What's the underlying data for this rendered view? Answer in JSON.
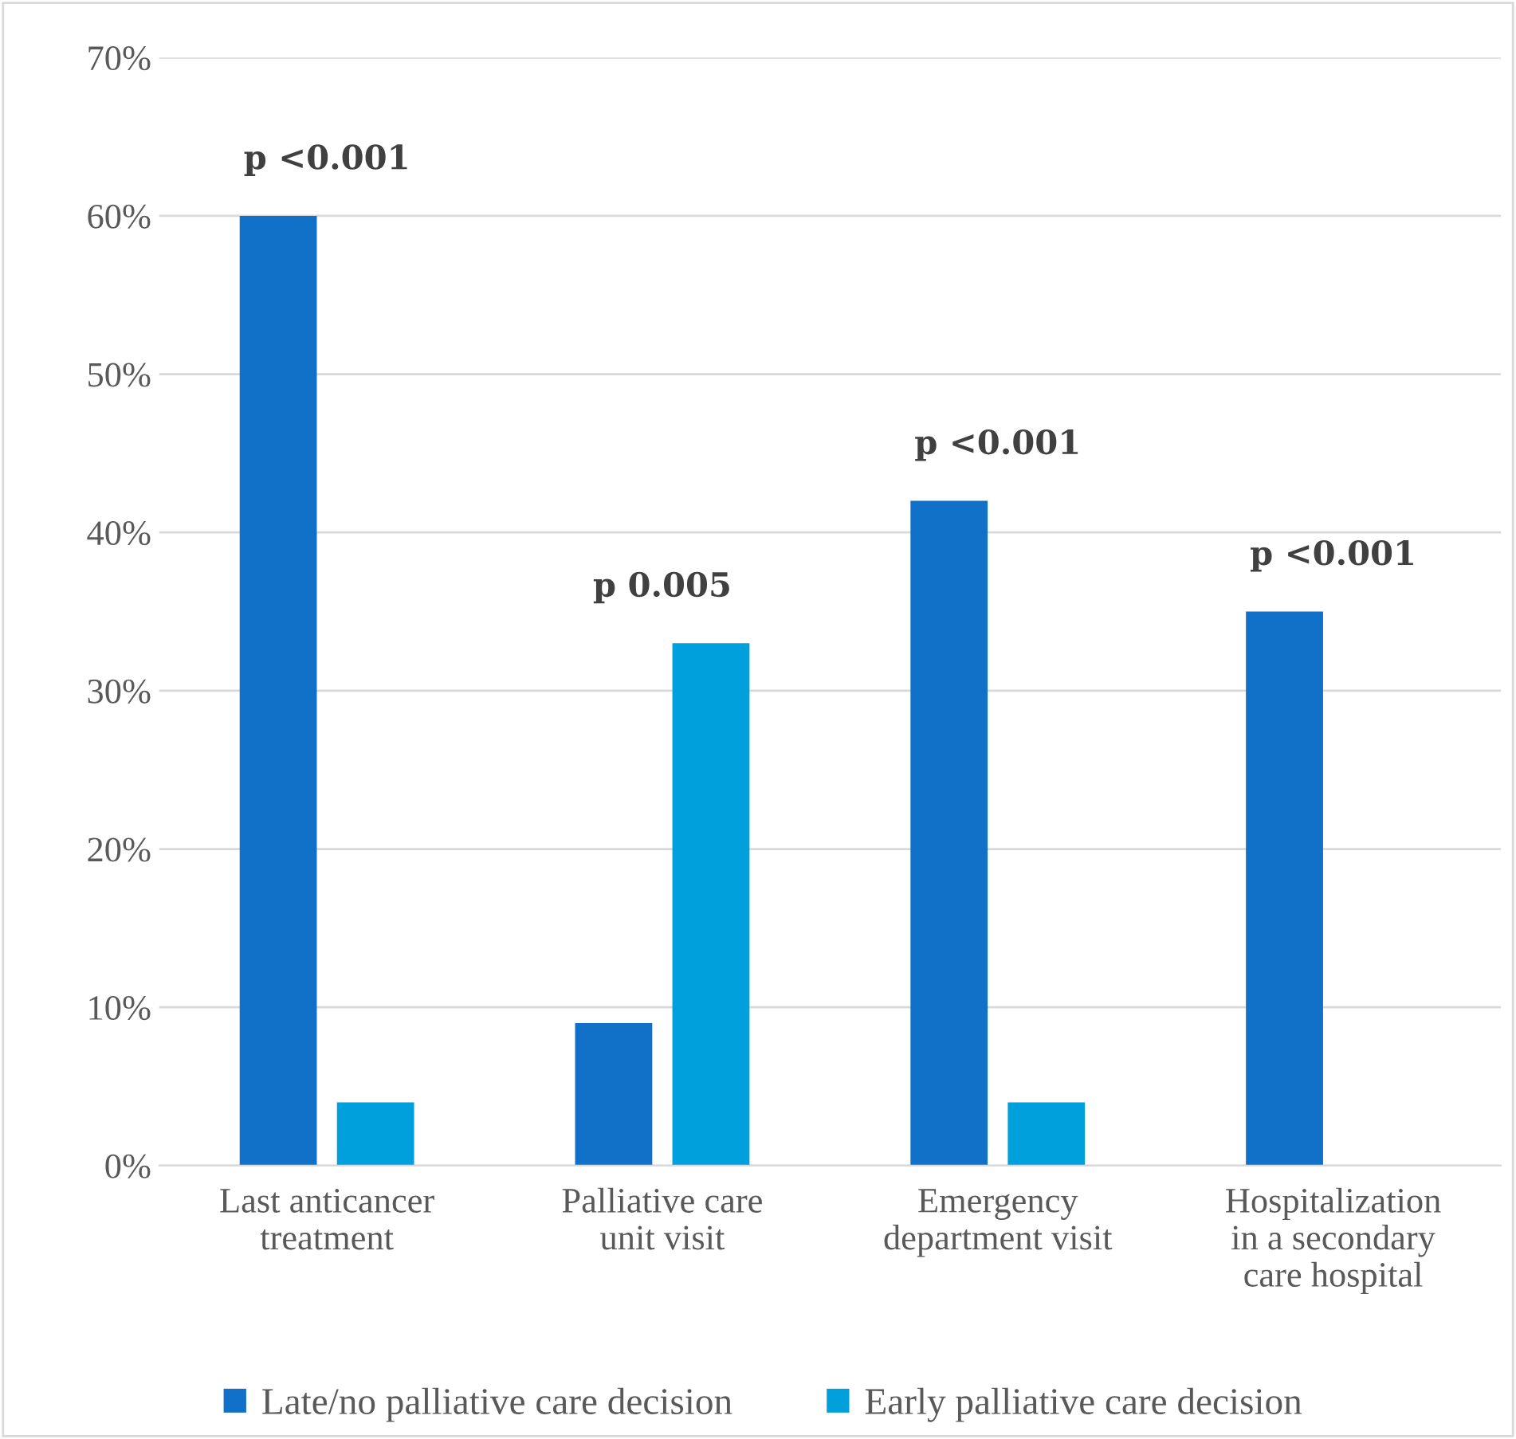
{
  "chart_data": {
    "type": "bar",
    "categories": [
      "Last anticancer\ntreatment",
      "Palliative care\nunit visit",
      "Emergency\ndepartment visit",
      "Hospitalization\nin a secondary\ncare hospital"
    ],
    "series": [
      {
        "name": "Late/no palliative care decision",
        "color": "#1170c8",
        "values": [
          60,
          9,
          42,
          35
        ]
      },
      {
        "name": "Early palliative care decision",
        "color": "#00a0dc",
        "values": [
          4,
          33,
          4,
          0
        ]
      }
    ],
    "ylim": [
      0,
      70
    ],
    "yticks": [
      {
        "value": 0,
        "label": "0%"
      },
      {
        "value": 10,
        "label": "10%"
      },
      {
        "value": 20,
        "label": "20%"
      },
      {
        "value": 30,
        "label": "30%"
      },
      {
        "value": 40,
        "label": "40%"
      },
      {
        "value": 50,
        "label": "50%"
      },
      {
        "value": 60,
        "label": "60%"
      },
      {
        "value": 70,
        "label": "70%"
      }
    ],
    "grid": "y",
    "legend": "bottom",
    "annotations": [
      "p <0.001",
      "p 0.005",
      "p <0.001",
      "p <0.001"
    ]
  }
}
